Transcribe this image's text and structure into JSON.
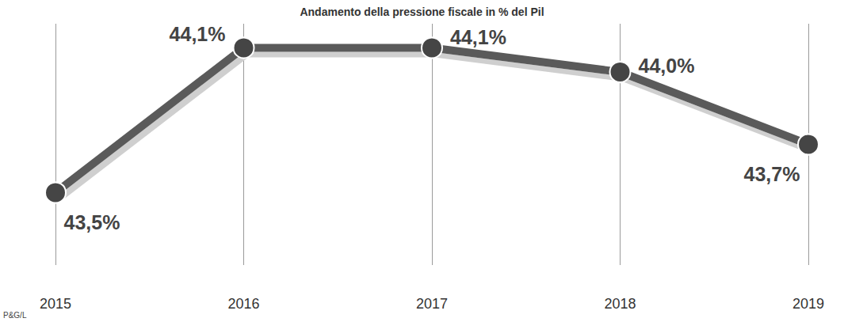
{
  "chart_data": {
    "type": "line",
    "title": "Andamento della pressione fiscale in % del Pil",
    "categories": [
      "2015",
      "2016",
      "2017",
      "2018",
      "2019"
    ],
    "values": [
      43.5,
      44.1,
      44.1,
      44.0,
      43.7
    ],
    "value_labels": [
      "43,5%",
      "44,1%",
      "44,1%",
      "44,0%",
      "43,7%"
    ],
    "color": "#5a5a5a",
    "marker": "circle",
    "ylim": [
      43.2,
      44.2
    ],
    "grid": true,
    "data_labels": true,
    "tick_labels": "x",
    "annotations": [
      "P&G/L"
    ]
  }
}
